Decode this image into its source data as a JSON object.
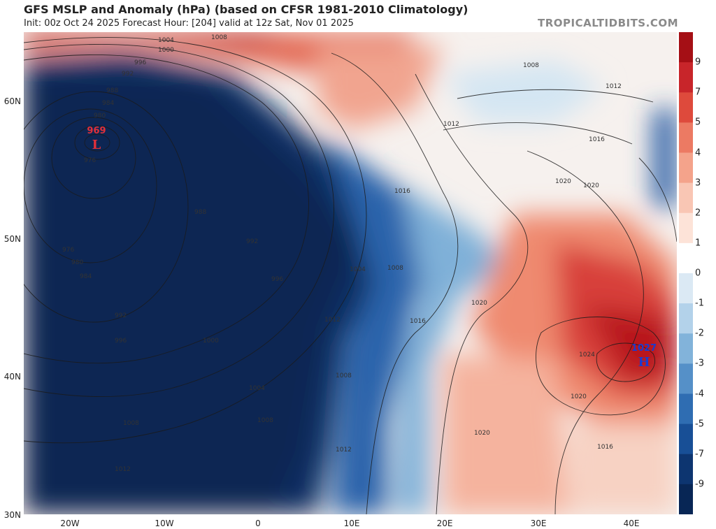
{
  "header": {
    "title": "GFS MSLP and Anomaly (hPa) (based on CFSR 1981-2010 Climatology)",
    "subtitle": "Init: 00z Oct 24 2025   Forecast Hour: [204]   valid at 12z Sat, Nov 01 2025",
    "brand": "TROPICALTIDBITS.COM"
  },
  "axes": {
    "lat_labels": [
      "60N",
      "50N",
      "40N",
      "30N"
    ],
    "lon_labels": [
      "20W",
      "10W",
      "0",
      "10E",
      "20E",
      "30E",
      "40E"
    ]
  },
  "systems": {
    "low": {
      "value": "969",
      "letter": "L",
      "color": "#e0303a"
    },
    "high": {
      "value": "1027",
      "letter": "H",
      "color": "#1a3bd0"
    }
  },
  "isobar_labels": {
    "l1004": "1004",
    "l1000": "1000",
    "l996": "996",
    "l992": "992",
    "l988": "988",
    "l984": "984",
    "l980": "980",
    "l976": "976",
    "l1008a": "1008",
    "l1008b": "1008",
    "l1012a": "1012",
    "l1016": "1016",
    "l1020a": "1020",
    "l1012b": "1012",
    "l1016b": "1016",
    "l988b": "988",
    "l976b": "976",
    "l980b": "980",
    "l984b": "984",
    "l992b": "992",
    "l996b": "996",
    "l992c": "992",
    "l996c": "996",
    "l1000b": "1000",
    "l1004b": "1004",
    "l1004c": "1004",
    "l1008c": "1008",
    "l1008d": "1008",
    "l1012c": "1012",
    "l1012d": "1012",
    "l1016c": "1016",
    "l1008e": "1008",
    "l1020b": "1020",
    "l1020c": "1020",
    "l1024": "1024",
    "l1020d": "1020",
    "l1020e": "1020",
    "l1016d": "1016",
    "l1012e": "1012",
    "l1008f": "1008"
  },
  "colorbar": {
    "labels": [
      "9",
      "7",
      "5",
      "4",
      "3",
      "2",
      "1",
      "0",
      "-1",
      "-2",
      "-3",
      "-4",
      "-5",
      "-7",
      "-9"
    ],
    "colors": [
      "#a50f15",
      "#c8252a",
      "#de4a3c",
      "#ec7a63",
      "#f4a38b",
      "#f9c6b4",
      "#fde3d8",
      "#ffffff",
      "#dbe9f4",
      "#b3d2ea",
      "#82b3da",
      "#5590c8",
      "#2f6db2",
      "#184f96",
      "#0d3570",
      "#082655"
    ]
  }
}
